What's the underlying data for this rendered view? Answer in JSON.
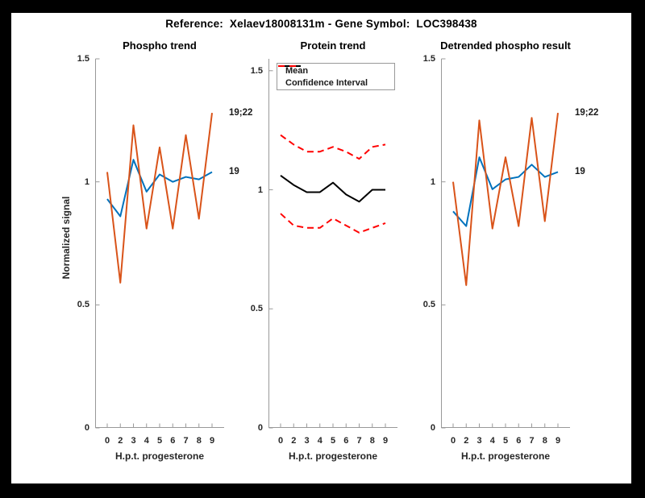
{
  "figure": {
    "title": "Reference:  Xelaev18008131m - Gene Symbol:  LOC398438"
  },
  "style": {
    "background": "#ffffff",
    "frame_color": "#000000",
    "spine_color": "#999999",
    "tick_text_color": "#262626",
    "blue": "#0072BD",
    "orange": "#D95319",
    "red": "#FF0000",
    "black": "#000000"
  },
  "chart_data": [
    {
      "type": "line",
      "title": "Phospho trend",
      "xlabel": "H.p.t. progesterone",
      "ylabel": "Normalized signal",
      "x_tick_labels": [
        "0",
        "2",
        "3",
        "4",
        "5",
        "6",
        "7",
        "8",
        "9"
      ],
      "y_ticks": [
        0,
        0.5,
        1,
        1.5
      ],
      "y_tick_labels": [
        "0",
        "0.5",
        "1",
        "1.5"
      ],
      "ylim": [
        0,
        1.5
      ],
      "grid": false,
      "legend": null,
      "series": [
        {
          "name": "19",
          "color": "#0072BD",
          "style": "solid",
          "width": 2,
          "end_label": "19",
          "values": [
            0.93,
            0.86,
            1.09,
            0.96,
            1.03,
            1.0,
            1.02,
            1.01,
            1.04
          ]
        },
        {
          "name": "19;22",
          "color": "#D95319",
          "style": "solid",
          "width": 2,
          "end_label": "19;22",
          "values": [
            1.04,
            0.59,
            1.23,
            0.81,
            1.14,
            0.81,
            1.19,
            0.85,
            1.28
          ]
        }
      ]
    },
    {
      "type": "line",
      "title": "Protein trend",
      "xlabel": "H.p.t. progesterone",
      "ylabel": "",
      "x_tick_labels": [
        "0",
        "2",
        "3",
        "4",
        "5",
        "6",
        "7",
        "8",
        "9"
      ],
      "y_ticks": [
        0,
        0.5,
        1,
        1.5
      ],
      "y_tick_labels": [
        "0",
        "0.5",
        "1",
        "1.5"
      ],
      "ylim": [
        0,
        1.55
      ],
      "grid": false,
      "legend": {
        "position": "top-left",
        "entries": [
          {
            "label": "Mean",
            "color": "#000000",
            "style": "solid"
          },
          {
            "label": "Confidence Interval",
            "color": "#FF0000",
            "style": "dashed"
          }
        ]
      },
      "series": [
        {
          "name": "Mean",
          "color": "#000000",
          "style": "solid",
          "width": 2,
          "end_label": null,
          "values": [
            1.06,
            1.02,
            0.99,
            0.99,
            1.03,
            0.98,
            0.95,
            1.0,
            1.0
          ]
        },
        {
          "name": "Confidence Interval upper",
          "color": "#FF0000",
          "style": "dashed",
          "width": 2,
          "end_label": null,
          "values": [
            1.23,
            1.19,
            1.16,
            1.16,
            1.18,
            1.16,
            1.13,
            1.18,
            1.19
          ]
        },
        {
          "name": "Confidence Interval lower",
          "color": "#FF0000",
          "style": "dashed",
          "width": 2,
          "end_label": null,
          "values": [
            0.9,
            0.85,
            0.84,
            0.84,
            0.88,
            0.85,
            0.82,
            0.84,
            0.86
          ]
        }
      ]
    },
    {
      "type": "line",
      "title": "Detrended phospho result",
      "xlabel": "H.p.t. progesterone",
      "ylabel": "",
      "x_tick_labels": [
        "0",
        "2",
        "3",
        "4",
        "5",
        "6",
        "7",
        "8",
        "9"
      ],
      "y_ticks": [
        0,
        0.5,
        1,
        1.5
      ],
      "y_tick_labels": [
        "0",
        "0.5",
        "1",
        "1.5"
      ],
      "ylim": [
        0,
        1.5
      ],
      "grid": false,
      "legend": null,
      "series": [
        {
          "name": "19",
          "color": "#0072BD",
          "style": "solid",
          "width": 2,
          "end_label": "19",
          "values": [
            0.88,
            0.82,
            1.1,
            0.97,
            1.01,
            1.02,
            1.07,
            1.02,
            1.04
          ]
        },
        {
          "name": "19;22",
          "color": "#D95319",
          "style": "solid",
          "width": 2,
          "end_label": "19;22",
          "values": [
            1.0,
            0.58,
            1.25,
            0.81,
            1.1,
            0.82,
            1.26,
            0.84,
            1.28
          ]
        }
      ]
    }
  ]
}
